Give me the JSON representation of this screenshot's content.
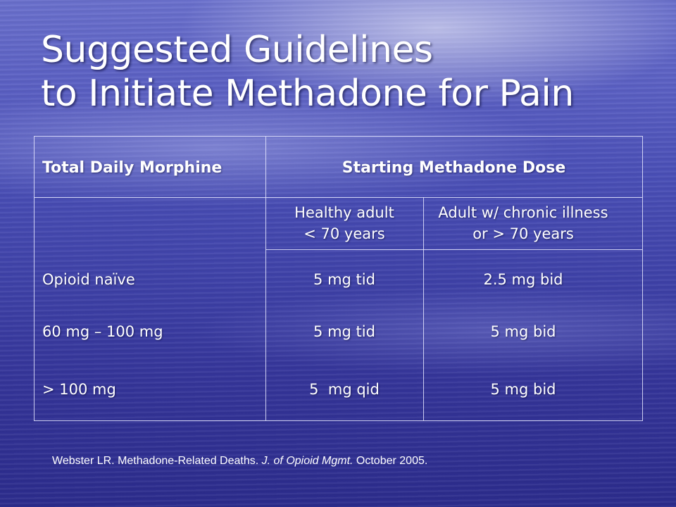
{
  "slide": {
    "title_line1": "Suggested Guidelines",
    "title_line2": "to Initiate Methadone for Pain"
  },
  "table": {
    "header_left": "Total Daily Morphine",
    "header_right": "Starting Methadone Dose",
    "sub_col1_line1": "Healthy adult",
    "sub_col1_line2": "< 70 years",
    "sub_col2_line1": "Adult w/ chronic illness",
    "sub_col2_line2": "or > 70 years",
    "rows": [
      {
        "morphine": "Opioid naïve",
        "healthy": "5 mg tid",
        "chronic": "2.5 mg bid"
      },
      {
        "morphine": "60 mg – 100 mg",
        "healthy": "5 mg tid",
        "chronic": "5 mg bid"
      },
      {
        "morphine": "> 100 mg",
        "healthy": "5  mg qid",
        "chronic": "5 mg bid"
      }
    ]
  },
  "citation": {
    "pre": "Webster LR. Methadone-Related Deaths. ",
    "journal": "J. of Opioid Mgmt.",
    "post": " October 2005."
  }
}
